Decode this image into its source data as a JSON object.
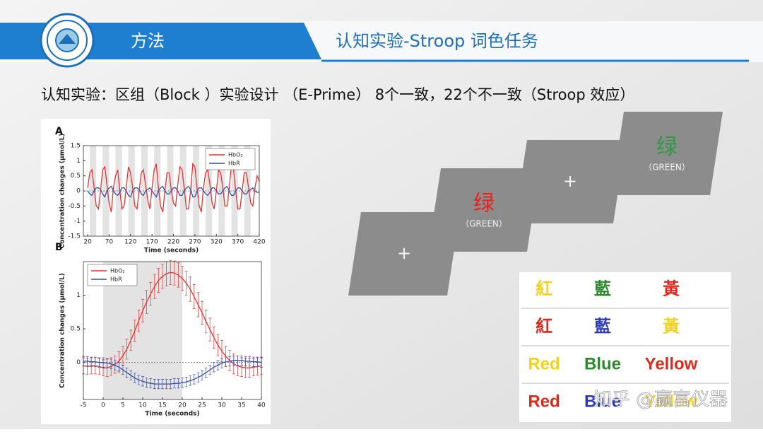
{
  "header": {
    "section": "方法",
    "title": "认知实验-Stroop 词色任务"
  },
  "subtitle": "认知实验：区组（Block ）实验设计 （E-Prime） 8个一致，22个不一致（Stroop 效应）",
  "chart_data": [
    {
      "type": "line",
      "panel": "A",
      "xlabel": "Time (seconds)",
      "ylabel": "Concentration changes (μmol/L)",
      "x": [
        20,
        25,
        30,
        35,
        40,
        45,
        50,
        55,
        60,
        65,
        70,
        75,
        80,
        85,
        90,
        95,
        100,
        105,
        110,
        115,
        120,
        125,
        130,
        135,
        140,
        145,
        150,
        155,
        160,
        165,
        170,
        175,
        180,
        185,
        190,
        195,
        200,
        205,
        210,
        215,
        220,
        225,
        230,
        235,
        240,
        245,
        250,
        255,
        260,
        265,
        270,
        275,
        280,
        285,
        290,
        295,
        300,
        305,
        310,
        315,
        320,
        325,
        330,
        335,
        340,
        345,
        350,
        355,
        360,
        365,
        370,
        375,
        380,
        385,
        390,
        395,
        400,
        405,
        410,
        415,
        420
      ],
      "series": [
        {
          "name": "HbO₂",
          "color": "#e8312f",
          "values": [
            0.1,
            0.6,
            0.7,
            0.1,
            -0.5,
            -0.6,
            0.0,
            0.7,
            0.8,
            0.2,
            -0.4,
            -0.7,
            0.1,
            0.5,
            0.7,
            0.0,
            -0.6,
            -0.5,
            0.1,
            0.8,
            0.6,
            0.1,
            -0.5,
            -0.6,
            0.0,
            0.6,
            0.7,
            0.2,
            -0.3,
            -0.6,
            0.1,
            0.7,
            0.9,
            0.1,
            -0.5,
            -0.7,
            0.0,
            0.6,
            0.6,
            0.0,
            -0.4,
            -0.5,
            0.2,
            0.8,
            0.7,
            0.1,
            -0.6,
            -0.6,
            0.0,
            0.9,
            0.8,
            0.1,
            -0.5,
            -0.7,
            0.1,
            0.6,
            0.7,
            0.2,
            -0.4,
            -0.6,
            0.0,
            0.7,
            0.6,
            0.1,
            -0.5,
            -0.5,
            0.1,
            0.8,
            0.7,
            0.0,
            -0.6,
            -0.6,
            0.0,
            0.6,
            0.6,
            0.1,
            -0.4,
            -0.5,
            0.1,
            0.5,
            0.3
          ]
        },
        {
          "name": "HbR",
          "color": "#3a4ea8",
          "values": [
            0.0,
            -0.1,
            -0.15,
            0.0,
            0.1,
            0.1,
            0.05,
            -0.1,
            -0.2,
            0.0,
            0.1,
            0.15,
            0.0,
            -0.1,
            -0.15,
            -0.05,
            0.1,
            0.1,
            0.0,
            -0.15,
            -0.2,
            0.0,
            0.1,
            0.1,
            0.05,
            -0.1,
            -0.15,
            0.0,
            0.05,
            0.1,
            0.0,
            -0.1,
            -0.2,
            0.0,
            0.1,
            0.15,
            0.0,
            -0.1,
            -0.1,
            0.0,
            0.1,
            0.1,
            0.0,
            -0.15,
            -0.15,
            0.0,
            0.1,
            0.15,
            0.05,
            -0.2,
            -0.2,
            0.0,
            0.1,
            0.1,
            0.0,
            -0.1,
            -0.15,
            -0.05,
            0.1,
            0.1,
            0.0,
            -0.1,
            -0.1,
            0.0,
            0.1,
            0.15,
            0.0,
            -0.15,
            -0.15,
            0.0,
            0.1,
            0.1,
            0.0,
            -0.1,
            -0.1,
            0.0,
            0.05,
            0.1,
            0.0,
            -0.05,
            -0.05
          ]
        }
      ],
      "blocks": [
        [
          25,
          40
        ],
        [
          55,
          70
        ],
        [
          85,
          100
        ],
        [
          115,
          130
        ],
        [
          145,
          160
        ],
        [
          175,
          190
        ],
        [
          205,
          220
        ],
        [
          235,
          250
        ],
        [
          265,
          280
        ],
        [
          295,
          310
        ],
        [
          325,
          340
        ],
        [
          355,
          370
        ],
        [
          385,
          400
        ]
      ],
      "xlim": [
        10,
        420
      ],
      "ylim": [
        -1.5,
        1.5
      ],
      "xticks": [
        20,
        70,
        120,
        170,
        220,
        270,
        320,
        370,
        420
      ],
      "yticks": [
        -1.5,
        -1,
        -0.5,
        0,
        0.5,
        1,
        1.5
      ],
      "legend": "upper right",
      "zero_line": true
    },
    {
      "type": "line",
      "panel": "B",
      "xlabel": "Time (seconds)",
      "ylabel": "Concentration changes (μmol/L)",
      "x": [
        -5,
        -4,
        -3,
        -2,
        -1,
        0,
        1,
        2,
        3,
        4,
        5,
        6,
        7,
        8,
        9,
        10,
        11,
        12,
        13,
        14,
        15,
        16,
        17,
        18,
        19,
        20,
        21,
        22,
        23,
        24,
        25,
        26,
        27,
        28,
        29,
        30,
        31,
        32,
        33,
        34,
        35,
        36,
        37,
        38,
        39,
        40
      ],
      "series": [
        {
          "name": "HbO₂",
          "color": "#e8312f",
          "values": [
            -0.05,
            -0.06,
            -0.05,
            -0.05,
            -0.06,
            -0.08,
            -0.08,
            -0.06,
            -0.03,
            0.02,
            0.1,
            0.2,
            0.33,
            0.47,
            0.62,
            0.77,
            0.9,
            1.02,
            1.13,
            1.22,
            1.28,
            1.32,
            1.34,
            1.33,
            1.3,
            1.25,
            1.18,
            1.09,
            0.98,
            0.86,
            0.74,
            0.61,
            0.49,
            0.37,
            0.26,
            0.17,
            0.09,
            0.03,
            -0.02,
            -0.05,
            -0.07,
            -0.08,
            -0.08,
            -0.07,
            -0.06,
            -0.05
          ],
          "errors": [
            0.12,
            0.12,
            0.12,
            0.12,
            0.12,
            0.12,
            0.13,
            0.13,
            0.13,
            0.14,
            0.14,
            0.15,
            0.15,
            0.16,
            0.16,
            0.17,
            0.17,
            0.17,
            0.18,
            0.18,
            0.18,
            0.18,
            0.18,
            0.18,
            0.18,
            0.18,
            0.18,
            0.18,
            0.18,
            0.18,
            0.17,
            0.17,
            0.17,
            0.16,
            0.16,
            0.16,
            0.15,
            0.15,
            0.15,
            0.15,
            0.14,
            0.14,
            0.14,
            0.13,
            0.13,
            0.13
          ]
        },
        {
          "name": "HbR",
          "color": "#3a4ea8",
          "values": [
            0.02,
            0.02,
            0.01,
            0.01,
            0.0,
            0.0,
            -0.01,
            -0.02,
            -0.04,
            -0.07,
            -0.11,
            -0.15,
            -0.19,
            -0.23,
            -0.26,
            -0.28,
            -0.3,
            -0.31,
            -0.32,
            -0.32,
            -0.32,
            -0.32,
            -0.32,
            -0.31,
            -0.31,
            -0.3,
            -0.29,
            -0.27,
            -0.25,
            -0.22,
            -0.19,
            -0.15,
            -0.11,
            -0.07,
            -0.04,
            -0.01,
            0.01,
            0.02,
            0.03,
            0.03,
            0.03,
            0.02,
            0.02,
            0.01,
            0.01,
            0.0
          ],
          "errors": [
            0.07,
            0.07,
            0.07,
            0.07,
            0.07,
            0.07,
            0.07,
            0.07,
            0.07,
            0.07,
            0.07,
            0.07,
            0.07,
            0.07,
            0.07,
            0.07,
            0.07,
            0.07,
            0.07,
            0.07,
            0.07,
            0.07,
            0.07,
            0.07,
            0.07,
            0.07,
            0.07,
            0.07,
            0.07,
            0.07,
            0.07,
            0.07,
            0.07,
            0.07,
            0.07,
            0.07,
            0.07,
            0.07,
            0.07,
            0.07,
            0.07,
            0.07,
            0.07,
            0.07,
            0.07,
            0.07
          ]
        }
      ],
      "blocks": [
        [
          0,
          20
        ]
      ],
      "xlim": [
        -5,
        40
      ],
      "ylim": [
        -0.55,
        1.5
      ],
      "xticks": [
        -5,
        0,
        5,
        10,
        15,
        20,
        25,
        30,
        35,
        40
      ],
      "yticks": [
        0,
        0.5,
        1
      ],
      "legend": "upper left",
      "zero_line": true
    }
  ],
  "cards": [
    {
      "text": "+"
    },
    {
      "text": "绿",
      "sub": "（GREEN）",
      "color": "#e8231c"
    },
    {
      "text": "+"
    },
    {
      "text": "绿",
      "sub": "（GREEN）",
      "color": "#2e9a44"
    }
  ],
  "stroop_table": {
    "rows": [
      [
        {
          "text": "紅",
          "color": "#f2d21b"
        },
        {
          "text": "藍",
          "color": "#2b8a2b"
        },
        {
          "text": "黃",
          "color": "#d92b1e"
        }
      ],
      [
        {
          "text": "紅",
          "color": "#d92b1e"
        },
        {
          "text": "藍",
          "color": "#2c3bb8"
        },
        {
          "text": "黃",
          "color": "#f2d21b"
        }
      ],
      [
        {
          "text": "Red",
          "color": "#f2d21b"
        },
        {
          "text": "Blue",
          "color": "#2b8a2b"
        },
        {
          "text": "Yellow",
          "color": "#d92b1e"
        }
      ],
      [
        {
          "text": "Red",
          "color": "#d92b1e"
        },
        {
          "text": "Blue",
          "color": "#2c3bb8"
        },
        {
          "text": "Yellow",
          "color": "#f2d21b"
        }
      ]
    ]
  },
  "watermark": "知乎 @赢富仪器"
}
